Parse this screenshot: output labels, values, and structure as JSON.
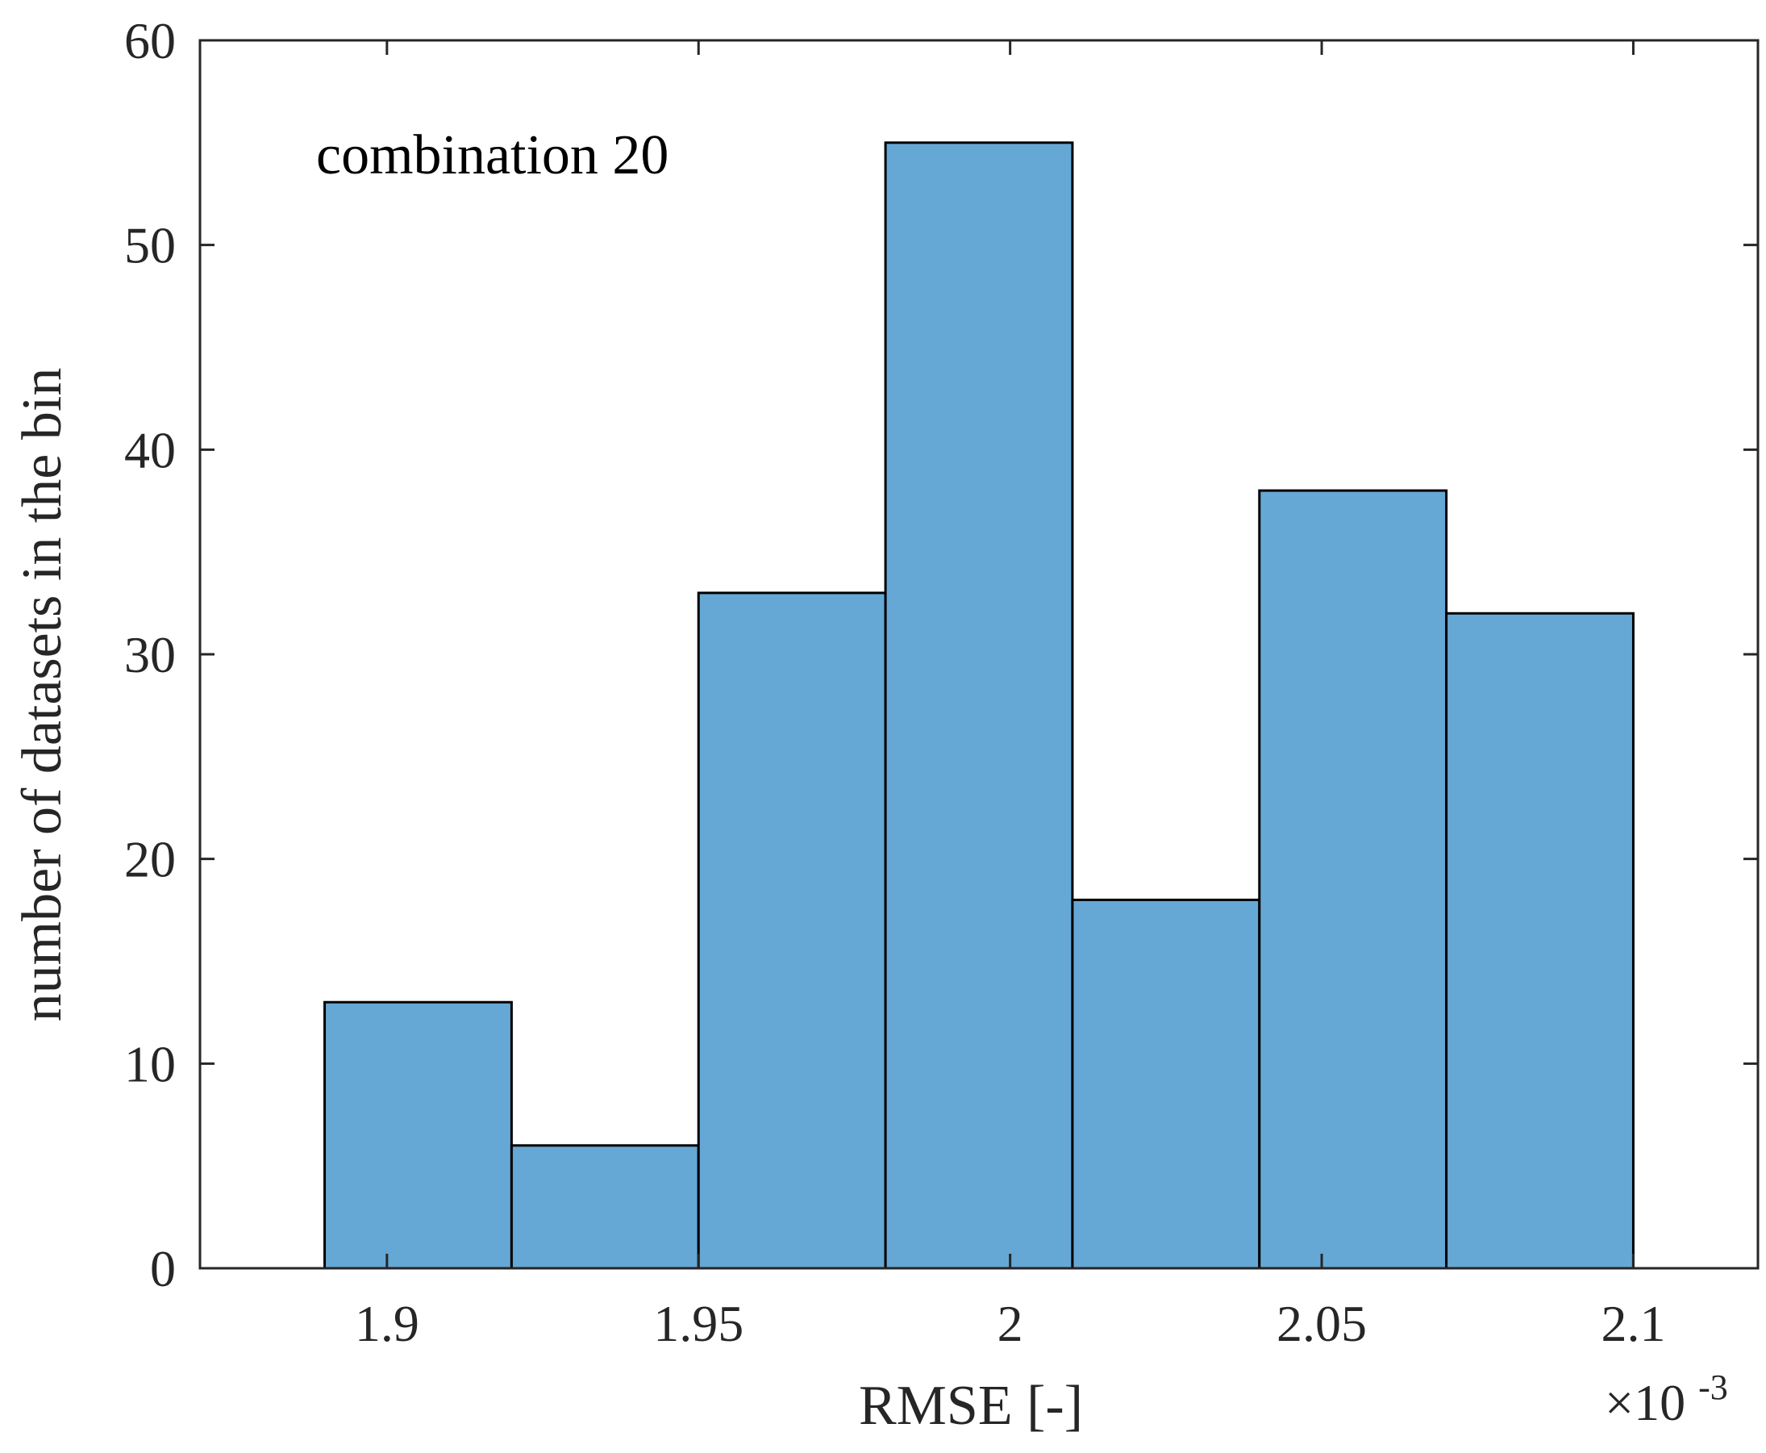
{
  "chart_data": {
    "type": "bar",
    "subtype": "histogram",
    "bin_edges": [
      1.89,
      1.92,
      1.95,
      1.98,
      2.01,
      2.04,
      2.07,
      2.1
    ],
    "values": [
      13,
      6,
      33,
      55,
      18,
      38,
      32
    ],
    "annotation": "combination 20",
    "xlabel": "RMSE [-]",
    "ylabel": "number of datasets in the bin",
    "xlim": [
      1.87,
      2.12
    ],
    "ylim": [
      0,
      60
    ],
    "xticks": [
      1.9,
      1.95,
      2.0,
      2.05,
      2.1
    ],
    "xtick_labels": [
      "1.9",
      "1.95",
      "2",
      "2.05",
      "2.1"
    ],
    "yticks": [
      0,
      10,
      20,
      30,
      40,
      50,
      60
    ],
    "ytick_labels": [
      "0",
      "10",
      "20",
      "30",
      "40",
      "50",
      "60"
    ],
    "x_exponent": {
      "base": "×10",
      "power": "-3"
    },
    "grid": false,
    "colors": {
      "bar_fill": "#66A8D5",
      "bar_edge": "#000000",
      "axis": "#262626"
    }
  }
}
